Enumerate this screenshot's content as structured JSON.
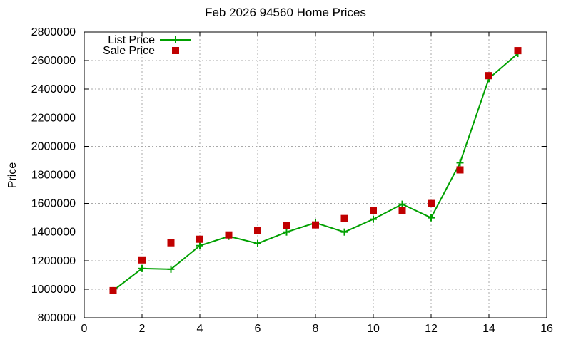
{
  "chart_data": {
    "type": "line",
    "title": "Feb 2026 94560 Home Prices",
    "xlabel": "",
    "ylabel": "Price",
    "xlim": [
      0,
      16
    ],
    "ylim": [
      800000,
      2800000
    ],
    "xtick_step": 2,
    "ytick_step": 200000,
    "grid": true,
    "legend_position": "top-left-inside",
    "x": [
      1,
      2,
      3,
      4,
      5,
      6,
      7,
      8,
      9,
      10,
      11,
      12,
      13,
      14,
      15
    ],
    "series": [
      {
        "name": "List Price",
        "style": "line-with-plus-markers",
        "color": "#00a000",
        "values": [
          990000,
          1145000,
          1140000,
          1305000,
          1370000,
          1320000,
          1400000,
          1465000,
          1400000,
          1490000,
          1595000,
          1500000,
          1885000,
          2475000,
          2650000
        ]
      },
      {
        "name": "Sale Price",
        "style": "square-markers",
        "color": "#c00000",
        "values": [
          990000,
          1205000,
          1325000,
          1350000,
          1380000,
          1410000,
          1445000,
          1450000,
          1495000,
          1550000,
          1550000,
          1600000,
          1835000,
          2495000,
          2670000
        ]
      }
    ]
  },
  "colors": {
    "background": "#ffffff",
    "frame": "#000000",
    "grid": "#a8a8a8",
    "text": "#000000"
  }
}
